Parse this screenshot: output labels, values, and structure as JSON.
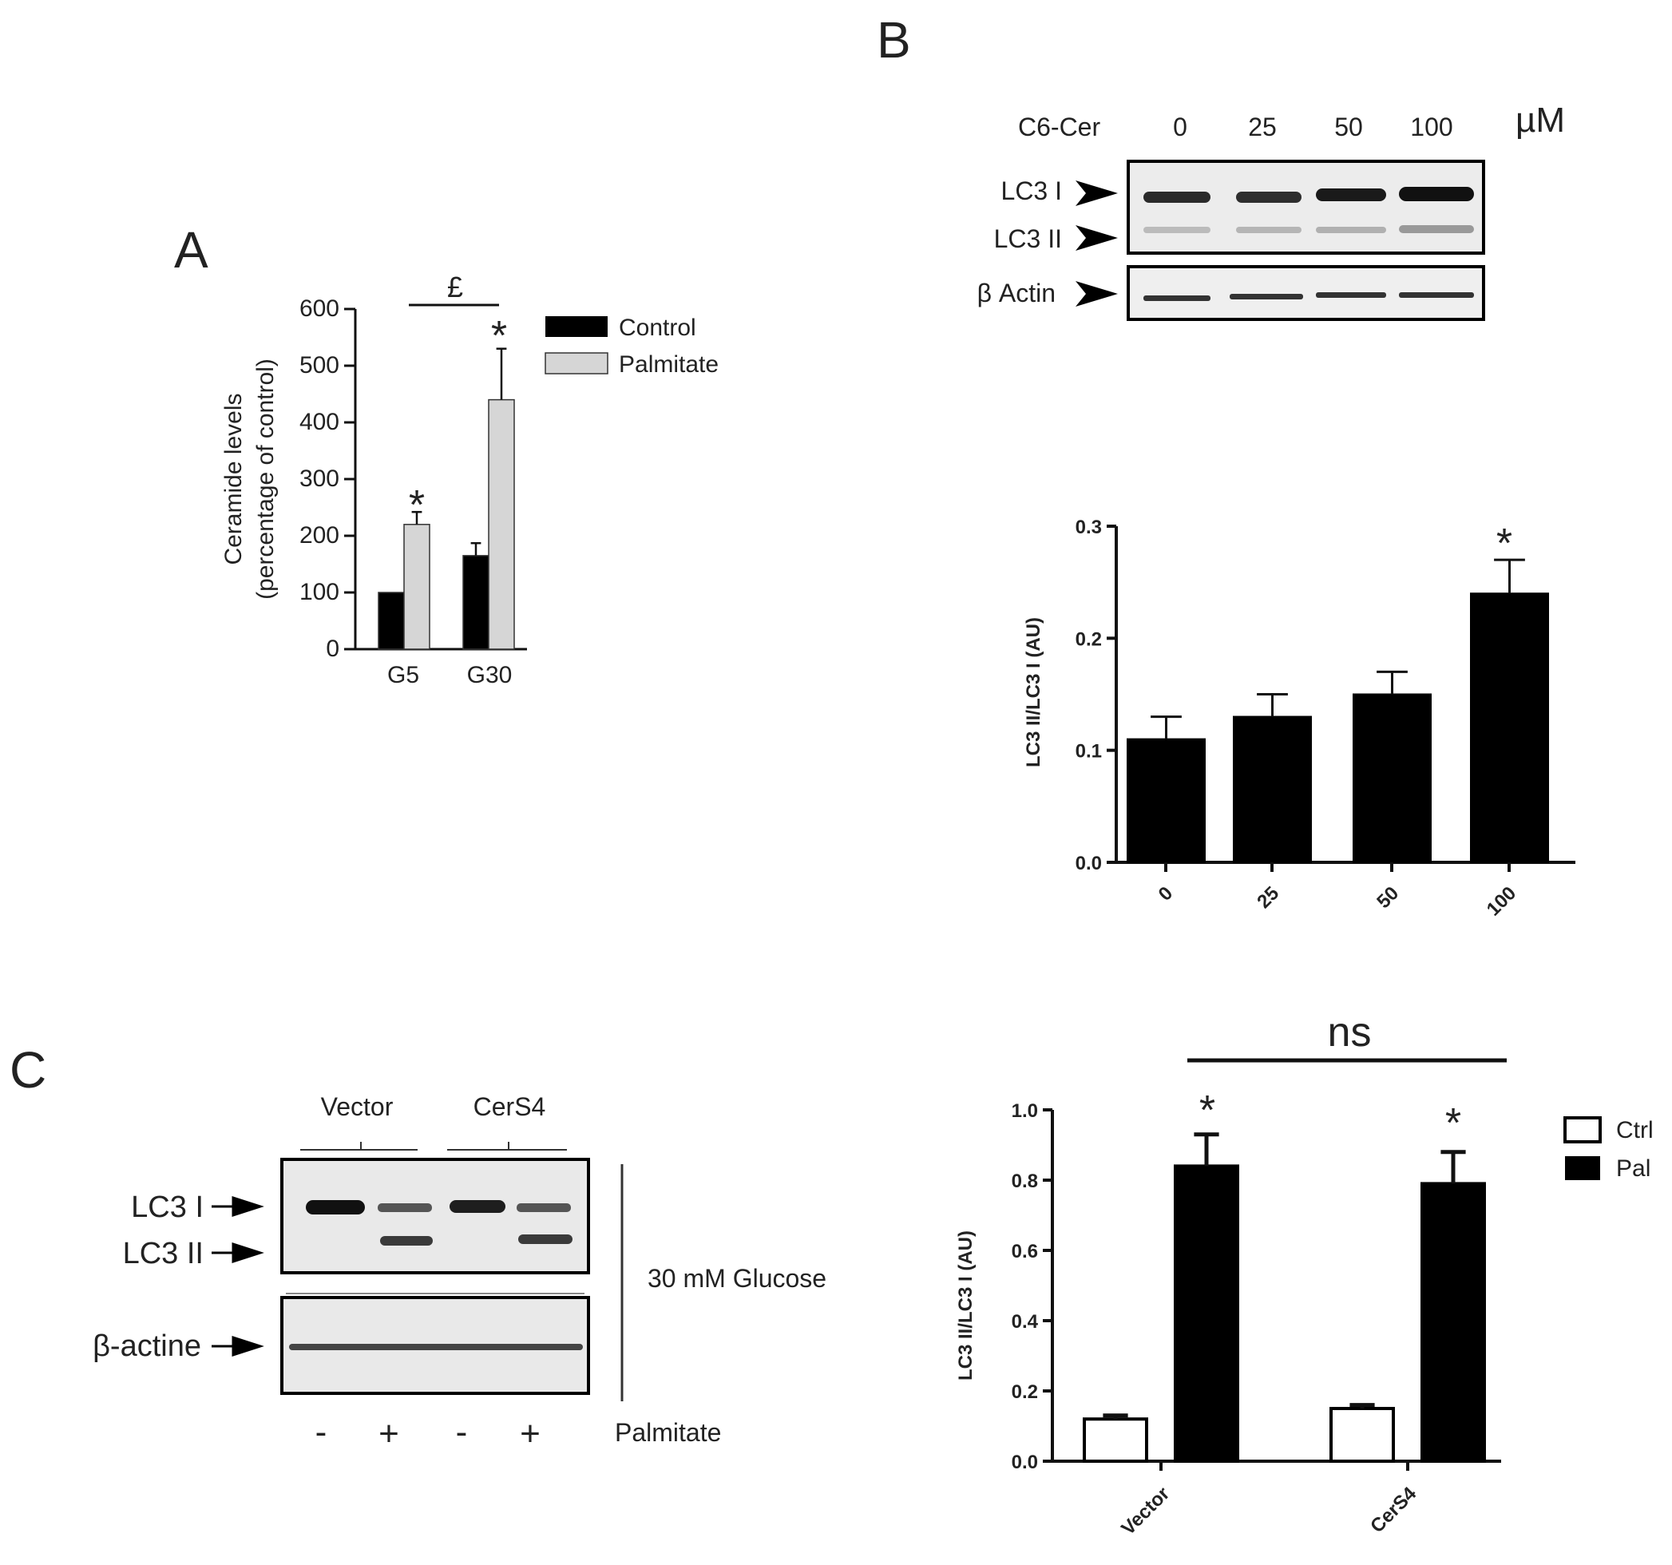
{
  "panels": {
    "a_label": "A",
    "b_label": "B",
    "c_label": "C"
  },
  "blot_b": {
    "treatment_label": "C6-Cer",
    "doses": [
      "0",
      "25",
      "50",
      "100"
    ],
    "unit": "µM",
    "band_labels": [
      "LC3 I",
      "LC3 II",
      "β Actin"
    ]
  },
  "blot_c": {
    "group_labels": [
      "Vector",
      "CerS4"
    ],
    "band_labels": [
      "LC3 I",
      "LC3 II",
      "β-actine"
    ],
    "condition_label": "30 mM Glucose",
    "palmitate_signs": [
      "-",
      "+",
      "-",
      "+"
    ],
    "palmitate_label": "Palmitate"
  },
  "chart_data": [
    {
      "id": "A",
      "type": "bar",
      "categories": [
        "G5",
        "G30"
      ],
      "series": [
        {
          "name": "Control",
          "values": [
            100,
            165
          ],
          "errors": [
            0,
            22
          ],
          "color": "#000000"
        },
        {
          "name": "Palmitate",
          "values": [
            220,
            440
          ],
          "errors": [
            22,
            90
          ],
          "color": "#d6d6d6"
        }
      ],
      "ylabel": "Ceramide levels",
      "ylabel2": "(percentage of control)",
      "ylim": [
        0,
        600
      ],
      "yticks": [
        "0",
        "100",
        "200",
        "300",
        "400",
        "500",
        "600"
      ],
      "annotations": {
        "stars": [
          "*",
          "*"
        ],
        "bracket": "£"
      },
      "legend": "right"
    },
    {
      "id": "B",
      "type": "bar",
      "categories": [
        "0",
        "25",
        "50",
        "100"
      ],
      "values": [
        0.11,
        0.13,
        0.15,
        0.24
      ],
      "errors": [
        0.02,
        0.02,
        0.02,
        0.03
      ],
      "ylabel": "LC3 II/LC3 I (AU)",
      "ylim": [
        0,
        0.3
      ],
      "yticks": [
        "0.0",
        "0.1",
        "0.2",
        "0.3"
      ],
      "annotations": {
        "star": "*"
      }
    },
    {
      "id": "C",
      "type": "bar",
      "categories": [
        "Vector",
        "CerS4"
      ],
      "series": [
        {
          "name": "Ctrl",
          "values": [
            0.12,
            0.15
          ],
          "errors": [
            0.01,
            0.01
          ],
          "color": "#ffffff"
        },
        {
          "name": "Pal",
          "values": [
            0.84,
            0.79
          ],
          "errors": [
            0.09,
            0.09
          ],
          "color": "#000000"
        }
      ],
      "ylabel": "LC3 II/LC3 I (AU)",
      "ylim": [
        0,
        1.0
      ],
      "yticks": [
        "0.0",
        "0.2",
        "0.4",
        "0.6",
        "0.8",
        "1.0"
      ],
      "annotations": {
        "stars": [
          "*",
          "*"
        ],
        "bracket": "ns"
      },
      "legend": "right"
    }
  ]
}
